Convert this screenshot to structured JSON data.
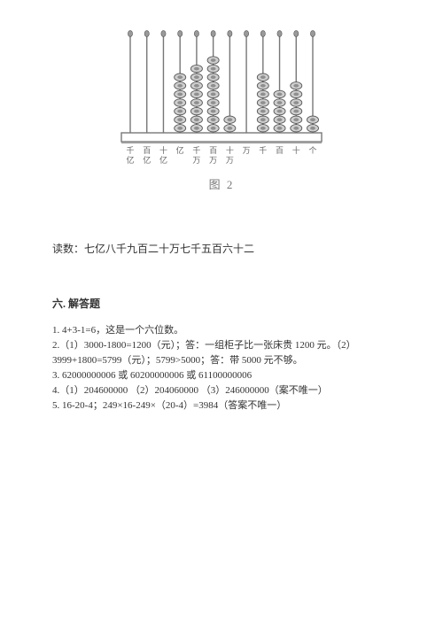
{
  "abacus": {
    "caption": "图 2",
    "frame_stroke": "#777777",
    "rod_stroke": "#777777",
    "bead_stroke": "#555555",
    "bead_fill_light": "#cfcfcf",
    "bead_fill_dark": "#8f8f8f",
    "top_knob_fill": "#9a9a9a",
    "label_color": "#666666",
    "label_fontsize": 9,
    "rods": [
      {
        "beads": 0,
        "label_top": "千",
        "label_bot": "亿"
      },
      {
        "beads": 0,
        "label_top": "百",
        "label_bot": "亿"
      },
      {
        "beads": 0,
        "label_top": "十",
        "label_bot": "亿"
      },
      {
        "beads": 7,
        "label_top": "亿",
        "label_bot": ""
      },
      {
        "beads": 8,
        "label_top": "千",
        "label_bot": "万"
      },
      {
        "beads": 9,
        "label_top": "百",
        "label_bot": "万"
      },
      {
        "beads": 2,
        "label_top": "十",
        "label_bot": "万"
      },
      {
        "beads": 0,
        "label_top": "万",
        "label_bot": ""
      },
      {
        "beads": 7,
        "label_top": "千",
        "label_bot": ""
      },
      {
        "beads": 5,
        "label_top": "百",
        "label_bot": ""
      },
      {
        "beads": 6,
        "label_top": "十",
        "label_bot": ""
      },
      {
        "beads": 2,
        "label_top": "个",
        "label_bot": ""
      }
    ]
  },
  "reading_line": "读数：七亿八千九百二十万七千五百六十二",
  "section_title": "六. 解答题",
  "answers": {
    "l1": "1. 4+3-1=6，这是一个六位数。",
    "l2": "2.（1）3000-1800=1200（元）；答：一组柜子比一张床贵 1200 元。（2）",
    "l3": "3999+1800=5799（元）；5799>5000；答：带 5000 元不够。",
    "l4": "3. 62000000006 或 60200000006 或 61100000006",
    "l5": "4.（1）204600000 （2）204060000 （3）246000000（案不唯一）",
    "l6": "5. 16-20-4；249×16-249×（20-4）=3984（答案不唯一）"
  }
}
